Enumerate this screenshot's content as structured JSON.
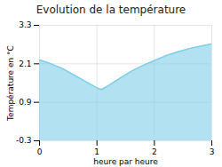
{
  "chart_data": {
    "type": "area",
    "title": "Evolution de la température",
    "xlabel": "heure par heure",
    "ylabel": "Température en °C",
    "x": [
      0,
      0.2,
      0.4,
      0.6,
      0.8,
      1.0,
      1.08,
      1.2,
      1.4,
      1.6,
      1.8,
      2.0,
      2.2,
      2.4,
      2.6,
      2.8,
      3.0
    ],
    "y": [
      2.22,
      2.1,
      1.95,
      1.75,
      1.55,
      1.35,
      1.3,
      1.42,
      1.65,
      1.87,
      2.05,
      2.2,
      2.35,
      2.47,
      2.57,
      2.65,
      2.72
    ],
    "xlim": [
      0,
      3
    ],
    "ylim": [
      -0.3,
      3.3
    ],
    "xticks": [
      0,
      1,
      2,
      3
    ],
    "yticks": [
      -0.3,
      0.9,
      2.1,
      3.3
    ],
    "color": "#7ecfe8",
    "grid": true
  }
}
